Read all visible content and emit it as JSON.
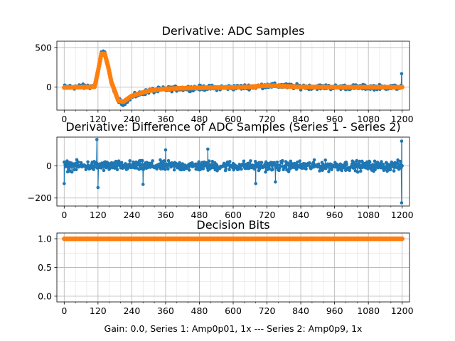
{
  "caption": "Gain: 0.0, Series 1: Amp0p01, 1x --- Series 2: Amp0p9, 1x",
  "colors": {
    "series1": "#1f77b4",
    "series2": "#ff7f0e",
    "grid": "#b0b0b0"
  },
  "chart_data": [
    {
      "type": "scatter",
      "title": "Derivative: ADC Samples",
      "xlabel": "",
      "ylabel": "",
      "xlim": [
        -26,
        1226
      ],
      "ylim": [
        -290,
        580
      ],
      "xticks": [
        0,
        120,
        240,
        360,
        480,
        600,
        720,
        840,
        960,
        1080,
        1200
      ],
      "xtick_labels": [
        "0",
        "120",
        "240",
        "360",
        "480",
        "600",
        "720",
        "840",
        "960",
        "1080",
        "1200"
      ],
      "yticks": [
        0,
        500
      ],
      "ytick_labels": [
        "0",
        "500"
      ],
      "grid": true,
      "series": [
        {
          "color": "#1f77b4",
          "description": "noisy derivative samples",
          "x_range": [
            0,
            1200
          ],
          "noise_amplitude": 45,
          "points": [
            [
              0,
              0
            ],
            [
              108,
              10
            ],
            [
              120,
              220
            ],
            [
              132,
              430
            ],
            [
              144,
              430
            ],
            [
              156,
              250
            ],
            [
              168,
              60
            ],
            [
              192,
              -170
            ],
            [
              210,
              -200
            ],
            [
              240,
              -120
            ],
            [
              300,
              -50
            ],
            [
              360,
              -25
            ],
            [
              480,
              -10
            ],
            [
              600,
              -5
            ],
            [
              660,
              5
            ],
            [
              720,
              20
            ],
            [
              780,
              15
            ],
            [
              840,
              5
            ],
            [
              960,
              0
            ],
            [
              1200,
              0
            ]
          ],
          "end_spike": [
            1198,
            170
          ]
        },
        {
          "color": "#ff7f0e",
          "description": "smoothed derivative",
          "x_range": [
            0,
            1200
          ],
          "points": [
            [
              0,
              -5
            ],
            [
              108,
              5
            ],
            [
              120,
              200
            ],
            [
              132,
              420
            ],
            [
              144,
              420
            ],
            [
              156,
              260
            ],
            [
              168,
              60
            ],
            [
              192,
              -170
            ],
            [
              210,
              -185
            ],
            [
              240,
              -110
            ],
            [
              300,
              -45
            ],
            [
              360,
              -20
            ],
            [
              480,
              -8
            ],
            [
              600,
              -5
            ],
            [
              660,
              5
            ],
            [
              720,
              20
            ],
            [
              780,
              12
            ],
            [
              840,
              3
            ],
            [
              960,
              0
            ],
            [
              1200,
              0
            ]
          ]
        }
      ]
    },
    {
      "type": "scatter",
      "title": "Derivative: Difference of ADC Samples (Series 1 - Series 2)",
      "xlabel": "",
      "ylabel": "",
      "xlim": [
        -26,
        1226
      ],
      "ylim": [
        -250,
        180
      ],
      "xticks": [
        0,
        120,
        240,
        360,
        480,
        600,
        720,
        840,
        960,
        1080,
        1200
      ],
      "xtick_labels": [
        "0",
        "120",
        "240",
        "360",
        "480",
        "600",
        "720",
        "840",
        "960",
        "1080",
        "1200"
      ],
      "yticks": [
        -200,
        0
      ],
      "ytick_labels": [
        "−200",
        "0"
      ],
      "grid": true,
      "series": [
        {
          "color": "#1f77b4",
          "description": "difference samples, noise around zero",
          "x_range": [
            0,
            1200
          ],
          "center": 0,
          "noise_amplitude": 45,
          "outliers": [
            [
              0,
              -110
            ],
            [
              116,
              165
            ],
            [
              120,
              -135
            ],
            [
              280,
              -115
            ],
            [
              360,
              100
            ],
            [
              510,
              105
            ],
            [
              680,
              -110
            ],
            [
              750,
              -100
            ],
            [
              1198,
              -230
            ],
            [
              1198,
              155
            ]
          ]
        }
      ]
    },
    {
      "type": "scatter",
      "title": "Decision Bits",
      "xlabel": "Gain: 0.0, Series 1: Amp0p01, 1x --- Series 2: Amp0p9, 1x",
      "ylabel": "",
      "xlim": [
        -26,
        1226
      ],
      "ylim": [
        -0.1,
        1.1
      ],
      "xticks": [
        0,
        120,
        240,
        360,
        480,
        600,
        720,
        840,
        960,
        1080,
        1200
      ],
      "xtick_labels": [
        "0",
        "120",
        "240",
        "360",
        "480",
        "600",
        "720",
        "840",
        "960",
        "1080",
        "1200"
      ],
      "yticks": [
        0.0,
        0.5,
        1.0
      ],
      "ytick_labels": [
        "0.0",
        "0.5",
        "1.0"
      ],
      "grid": true,
      "series": [
        {
          "color": "#ff7f0e",
          "description": "decision bits",
          "x_range": [
            0,
            1200
          ],
          "constant": 1.0
        }
      ]
    }
  ]
}
